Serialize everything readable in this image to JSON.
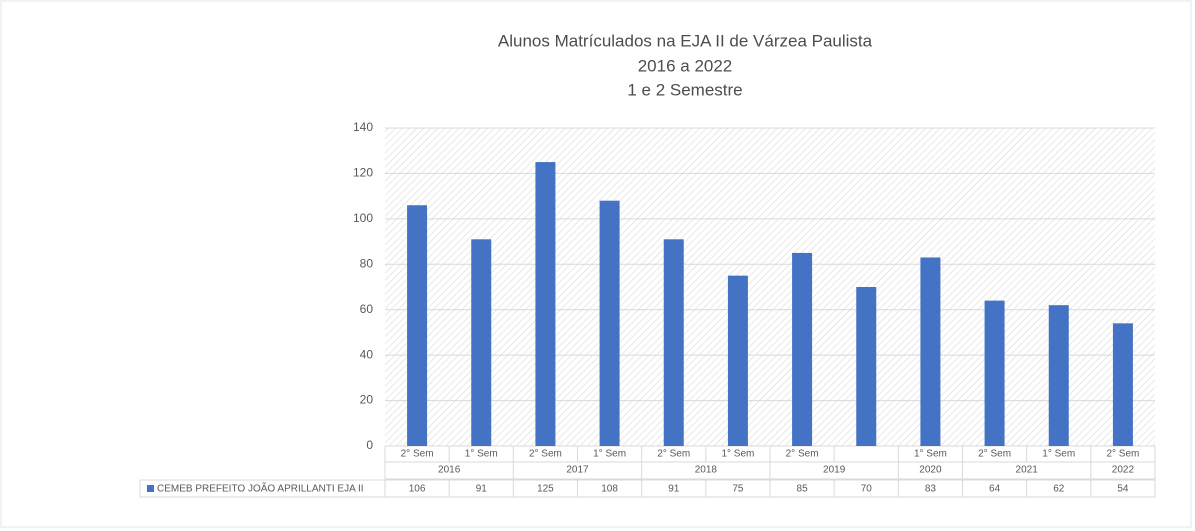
{
  "chart_data": {
    "type": "bar",
    "title": [
      "Alunos Matrículados na EJA II de Várzea Paulista",
      "2016 a 2022",
      "1 e 2 Semestre"
    ],
    "groups": [
      {
        "label": "2016",
        "categories": [
          "2° Sem",
          "1° Sem"
        ]
      },
      {
        "label": "2017",
        "categories": [
          "2° Sem",
          "1° Sem"
        ]
      },
      {
        "label": "2018",
        "categories": [
          "2° Sem",
          "1° Sem"
        ]
      },
      {
        "label": "2019",
        "categories": [
          "2° Sem",
          null
        ]
      },
      {
        "label": "2020",
        "categories": [
          "1° Sem"
        ]
      },
      {
        "label": "2021",
        "categories": [
          "2° Sem",
          "1° Sem"
        ]
      },
      {
        "label": "2022",
        "categories": [
          "2° Sem"
        ]
      }
    ],
    "series": [
      {
        "name": "CEMEB PREFEITO JOÃO APRILLANTI EJA II",
        "color": "#4472c4",
        "values": [
          106,
          91,
          125,
          108,
          91,
          75,
          85,
          70,
          83,
          64,
          62,
          54
        ]
      }
    ],
    "ylim": [
      0,
      140
    ],
    "yticks": [
      0,
      20,
      40,
      60,
      80,
      100,
      120,
      140
    ],
    "grid": true,
    "data_table": true
  }
}
